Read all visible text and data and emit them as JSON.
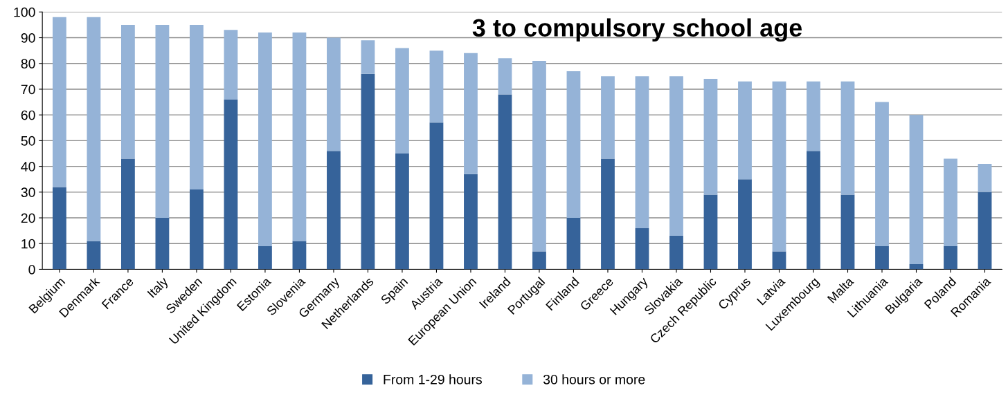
{
  "chart_data": {
    "type": "bar",
    "title": "3 to compulsory school age",
    "stacked": true,
    "categories": [
      "Belgium",
      "Denmark",
      "France",
      "Italy",
      "Sweden",
      "United Kingdom",
      "Estonia",
      "Slovenia",
      "Germany",
      "Netherlands",
      "Spain",
      "Austria",
      "European Union",
      "Ireland",
      "Portugal",
      "Finland",
      "Greece",
      "Hungary",
      "Slovakia",
      "Czech Republic",
      "Cyprus",
      "Latvia",
      "Luxembourg",
      "Malta",
      "Lithuania",
      "Bulgaria",
      "Poland",
      "Romania"
    ],
    "series": [
      {
        "name": "From 1-29 hours",
        "color": "#36639a",
        "values": [
          32,
          11,
          43,
          20,
          31,
          66,
          9,
          11,
          46,
          76,
          45,
          57,
          37,
          68,
          7,
          20,
          43,
          16,
          13,
          29,
          35,
          7,
          46,
          29,
          9,
          2,
          9,
          30
        ]
      },
      {
        "name": "30 hours or more",
        "color": "#95b3d7",
        "values": [
          66,
          87,
          52,
          75,
          64,
          27,
          83,
          81,
          44,
          13,
          41,
          28,
          47,
          14,
          74,
          57,
          32,
          59,
          62,
          45,
          38,
          66,
          27,
          44,
          56,
          58,
          34,
          11
        ]
      }
    ],
    "ylim": [
      0,
      100
    ],
    "yticks": [
      0,
      10,
      20,
      30,
      40,
      50,
      60,
      70,
      80,
      90,
      100
    ],
    "grid": "y",
    "legend": "bottom"
  }
}
